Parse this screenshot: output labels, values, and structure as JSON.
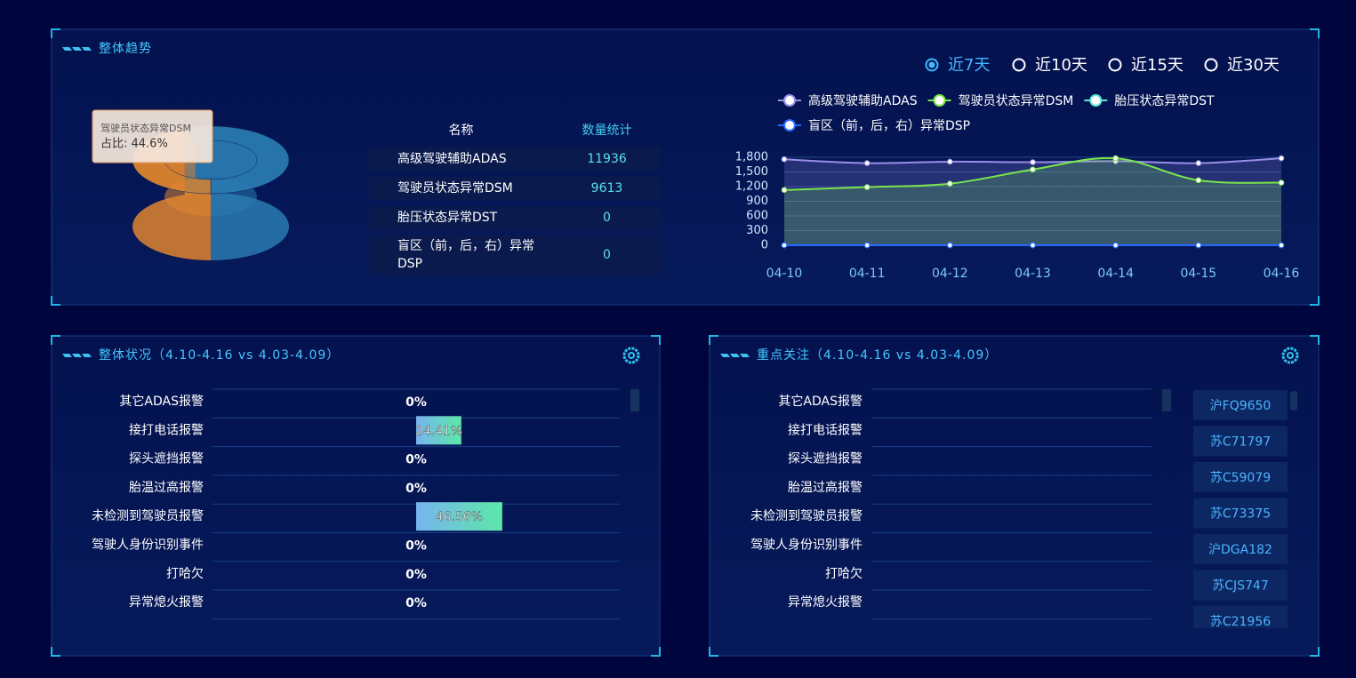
{
  "overview": {
    "title": "整体趋势",
    "ranges": [
      "近7天",
      "近10天",
      "近15天",
      "近30天"
    ],
    "table": {
      "columns": [
        "名称",
        "数量统计"
      ],
      "rows": [
        [
          "高级驾驶辅助ADAS",
          11936
        ],
        [
          "驾驶员状态异常DSM",
          9613
        ],
        [
          "胎压状态异常DST",
          0
        ],
        [
          "盲区（前，后，右）异常DSP",
          0
        ]
      ]
    }
  },
  "chart_data": [
    {
      "type": "pie",
      "categories": [
        "高级驾驶辅助ADAS",
        "驾驶员状态异常DSM",
        "胎压状态异常DST",
        "盲区（前，后，右）异常DSP"
      ],
      "values": [
        11936,
        9613,
        0,
        0
      ],
      "colors": [
        "#2a7ab0",
        "#e0852f",
        "#3fc9c9",
        "#2f5bd6"
      ],
      "tooltip": {
        "title": "驾驶员状态异常DSM",
        "text": "占比: 44.6%"
      }
    },
    {
      "type": "line",
      "x": [
        "04-10",
        "04-11",
        "04-12",
        "04-13",
        "04-14",
        "04-15",
        "04-16"
      ],
      "series": [
        {
          "name": "高级驾驶辅助ADAS",
          "color": "#9a8ee8",
          "values": [
            1760,
            1680,
            1710,
            1700,
            1720,
            1680,
            1780
          ]
        },
        {
          "name": "驾驶员状态异常DSM",
          "color": "#7be64c",
          "values": [
            1130,
            1190,
            1260,
            1550,
            1780,
            1330,
            1280
          ]
        },
        {
          "name": "胎压状态异常DST",
          "color": "#5fe3d6",
          "values": [
            0,
            0,
            0,
            0,
            0,
            0,
            0
          ]
        },
        {
          "name": "盲区（前，后，右）异常DSP",
          "color": "#2468ff",
          "values": [
            0,
            0,
            0,
            0,
            0,
            0,
            0
          ]
        }
      ],
      "ylim": [
        0,
        1800
      ],
      "yticks": [
        0,
        300,
        600,
        900,
        {
          "value": 1200,
          "label": "1,200"
        },
        {
          "value": 1500,
          "label": "1,500"
        },
        {
          "value": 1800,
          "label": "1,800"
        }
      ],
      "grid": true
    },
    {
      "type": "hbar",
      "title": "整体状况（4.10-4.16 vs 4.03-4.09）",
      "categories": [
        "其它ADAS报警",
        "接打电话报警",
        "探头遮挡报警",
        "胎温过高报警",
        "未检测到驾驶员报警",
        "驾驶人身份识别事件",
        "打哈欠",
        "异常熄火报警"
      ],
      "values": [
        0,
        24.41,
        0,
        0,
        46.56,
        0,
        0,
        0
      ],
      "value_labels": [
        "0%",
        "24.41%",
        "0%",
        "0%",
        "46.56%",
        "0%",
        "0%",
        "0%"
      ],
      "xlim": [
        0,
        100
      ],
      "colors": [
        "#78b4f0",
        "#5ce8a8"
      ]
    }
  ],
  "focus": {
    "title": "重点关注（4.10-4.16 vs 4.03-4.09）",
    "categories": [
      "其它ADAS报警",
      "接打电话报警",
      "探头遮挡报警",
      "胎温过高报警",
      "未检测到驾驶员报警",
      "驾驶人身份识别事件",
      "打哈欠",
      "异常熄火报警"
    ],
    "plates": [
      "沪FQ9650",
      "苏C71797",
      "苏C59079",
      "苏C73375",
      "沪DGA182",
      "苏CJS747",
      "苏C21956"
    ]
  }
}
